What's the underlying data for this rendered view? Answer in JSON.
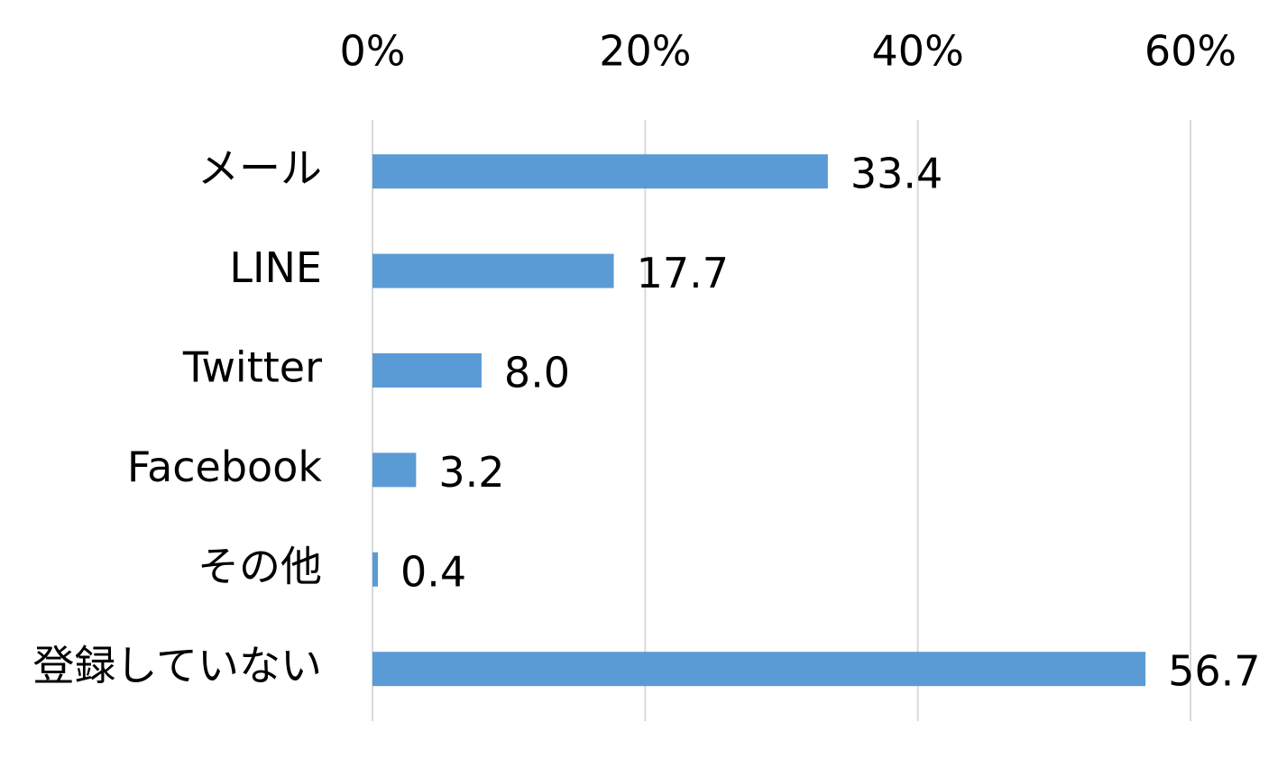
{
  "chart_data": {
    "type": "bar",
    "orientation": "horizontal",
    "categories": [
      "メール",
      "LINE",
      "Twitter",
      "Facebook",
      "その他",
      "登録していない"
    ],
    "values": [
      33.4,
      17.7,
      8.0,
      3.2,
      0.4,
      56.7
    ],
    "value_labels": [
      "33.4",
      "17.7",
      "8.0",
      "3.2",
      "0.4",
      "56.7"
    ],
    "color": "#5b9bd5",
    "xlim": [
      0,
      60
    ],
    "xticks": [
      {
        "value": 0,
        "label": "0%"
      },
      {
        "value": 20,
        "label": "20%"
      },
      {
        "value": 40,
        "label": "40%"
      },
      {
        "value": 60,
        "label": "60%"
      }
    ],
    "grid": true
  }
}
